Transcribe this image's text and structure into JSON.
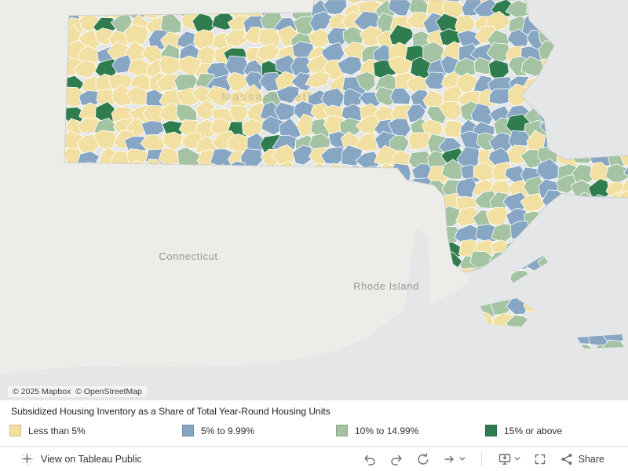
{
  "map": {
    "labels": {
      "massachusetts": "Massachusetts",
      "connecticut": "Connecticut",
      "rhode_island": "Rhode Island"
    },
    "attribution": "© 2025 Mapbox  © OpenStreetMap",
    "colors": {
      "water": "#e4e6e7",
      "land": "#ecece9",
      "town_border": "#ffffff",
      "state_border": "#c4c4c4"
    }
  },
  "legend": {
    "title": "Subsidized Housing Inventory as a Share of Total Year-Round Housing Units",
    "items": [
      {
        "label": "Less than 5%",
        "color": "#f1e0a2"
      },
      {
        "label": "5% to 9.99%",
        "color": "#87a6c4"
      },
      {
        "label": "10% to 14.99%",
        "color": "#a3c3a2"
      },
      {
        "label": "15% or above",
        "color": "#2f7d4f"
      }
    ]
  },
  "toolbar": {
    "view_on_tableau_public": "View on Tableau Public",
    "share": "Share"
  }
}
